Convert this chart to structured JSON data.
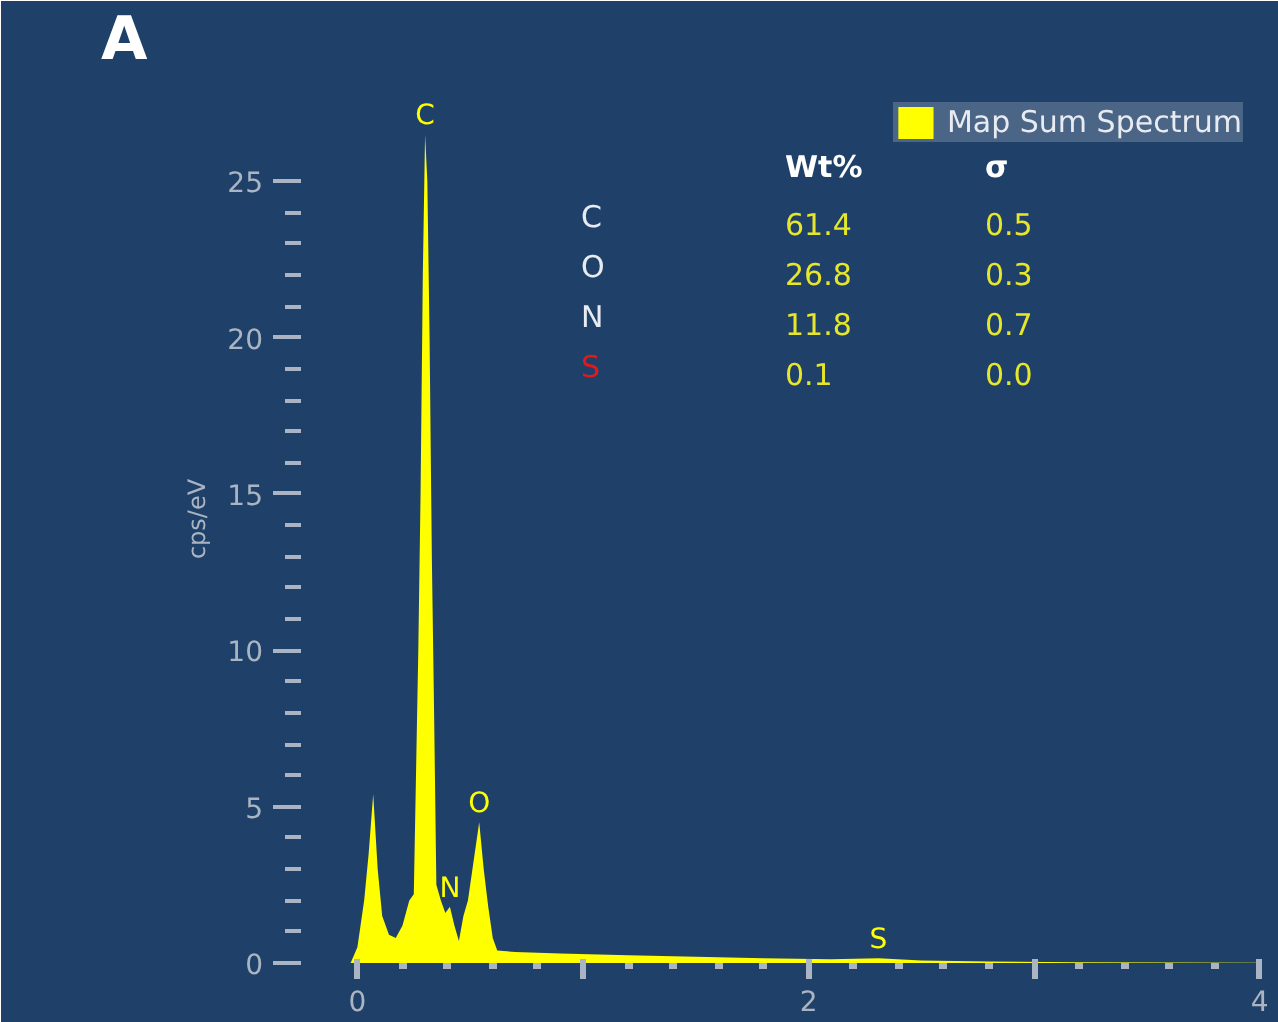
{
  "chart_data": {
    "type": "area",
    "ylabel": "cps/eV",
    "xlim": [
      -0.25,
      4.05
    ],
    "ylim": [
      0,
      28.4
    ],
    "xticks": [
      0,
      {
        "value": 1,
        "label": null
      },
      2,
      {
        "value": 3,
        "label": null
      },
      4
    ],
    "yticks": [
      0,
      5,
      10,
      15,
      20,
      25
    ],
    "grid": false,
    "legend": "top right",
    "x": [
      -0.03,
      0.0,
      0.03,
      0.05,
      0.07,
      0.09,
      0.11,
      0.14,
      0.17,
      0.2,
      0.23,
      0.25,
      0.27,
      0.28,
      0.29,
      0.3,
      0.31,
      0.32,
      0.33,
      0.34,
      0.35,
      0.37,
      0.39,
      0.41,
      0.43,
      0.45,
      0.47,
      0.49,
      0.52,
      0.54,
      0.56,
      0.58,
      0.6,
      0.62,
      0.7,
      0.9,
      1.2,
      1.5,
      1.8,
      2.1,
      2.31,
      2.5,
      2.8,
      3.2,
      4.0
    ],
    "series": [
      {
        "name": "Map Sum Spectrum",
        "color": "#ffff00",
        "values": [
          0,
          0.5,
          2.0,
          3.5,
          5.4,
          3.0,
          1.5,
          0.9,
          0.8,
          1.2,
          2.0,
          2.2,
          10,
          15,
          22,
          26.5,
          25,
          20,
          13,
          8,
          2.5,
          2.0,
          1.6,
          1.8,
          1.2,
          0.7,
          1.5,
          2.0,
          3.5,
          4.5,
          3.0,
          1.8,
          0.8,
          0.4,
          0.35,
          0.3,
          0.25,
          0.2,
          0.15,
          0.12,
          0.15,
          0.08,
          0.05,
          0.02,
          0.01
        ]
      }
    ],
    "annotations": [
      "A",
      "Wt%",
      "σ",
      "C",
      "61.4",
      "0.5",
      "O",
      "26.8",
      "0.3",
      "N",
      "11.8",
      "0.7",
      "S",
      "0.1",
      "0.0",
      {
        "text": "C",
        "x": 0.3,
        "y": 26.5
      },
      {
        "text": "O",
        "x": 0.54,
        "y": 4.5
      },
      {
        "text": "N",
        "x": 0.41,
        "y": 1.8
      },
      {
        "text": "S",
        "x": 2.31,
        "y": 0.15
      }
    ]
  }
}
